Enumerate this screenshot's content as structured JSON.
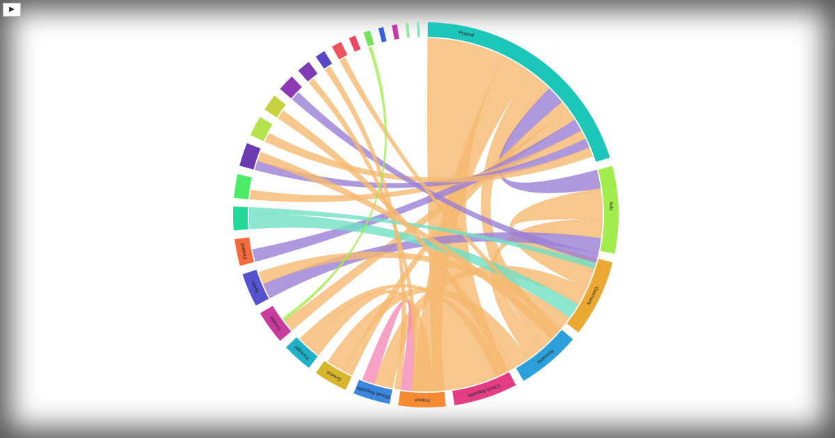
{
  "chart_data": {
    "type": "chord",
    "categories": [
      "Poland",
      "Italy",
      "Germany",
      "Romania",
      "Czech Republic",
      "France",
      "Slovak Republic",
      "Greece",
      "Portugal",
      "Croatia",
      "Spain",
      "Finland",
      null,
      null,
      null,
      null,
      null,
      null,
      null,
      null,
      null,
      null,
      null,
      null,
      null,
      null,
      null
    ],
    "values": [
      71,
      26,
      23,
      19,
      19,
      14,
      11,
      10,
      9,
      10,
      10,
      8,
      7,
      7,
      7,
      6,
      5,
      5,
      4,
      3,
      3,
      2,
      2,
      1.5,
      1.5,
      0.8,
      0.6
    ],
    "colors": [
      "#1cc7b9",
      "#a3ec4e",
      "#eba833",
      "#2d9fdb",
      "#e43d83",
      "#f58a32",
      "#3c86db",
      "#d7b52d",
      "#22b0c7",
      "#c83c9e",
      "#5653cf",
      "#f56b3d",
      "#22d99a",
      "#4cec67",
      "#6c3ab0",
      "#b4e34f",
      "#c5d13f",
      "#8e39b3",
      "#7e3bb5",
      "#5946c4",
      "#f0535f",
      "#ec4663",
      "#77e35c",
      "#3a5fd6",
      "#c43ca6",
      "#8ee8a0",
      "#77e3b5"
    ],
    "flows": [
      {
        "source": 0,
        "target": 4,
        "value": 25,
        "color": "#f5b971"
      },
      {
        "source": 0,
        "target": 5,
        "value": 10,
        "color": "#f5b971"
      },
      {
        "source": 0,
        "target": 3,
        "value": 8,
        "color": "#f5b971"
      },
      {
        "source": 0,
        "target": 1,
        "value": 6,
        "color": "#9b7fd6"
      },
      {
        "source": 7,
        "target": 0,
        "value": 3,
        "color": "#f5b971"
      },
      {
        "source": 9,
        "target": 0,
        "value": 4,
        "color": "#f5b971"
      },
      {
        "source": 11,
        "target": 0,
        "value": 4,
        "color": "#9b7fd6"
      },
      {
        "source": 13,
        "target": 0,
        "value": 3,
        "color": "#f5b971"
      },
      {
        "source": 1,
        "target": 2,
        "value": 10,
        "color": "#f5b971"
      },
      {
        "source": 1,
        "target": 3,
        "value": 6,
        "color": "#f5b971"
      },
      {
        "source": 1,
        "target": 10,
        "value": 5,
        "color": "#9b7fd6"
      },
      {
        "source": 2,
        "target": 6,
        "value": 6,
        "color": "#f5b971"
      },
      {
        "source": 2,
        "target": 12,
        "value": 5,
        "color": "#6fe0c4"
      },
      {
        "source": 3,
        "target": 7,
        "value": 6,
        "color": "#f5b971"
      },
      {
        "source": 4,
        "target": 8,
        "value": 5,
        "color": "#f5b971"
      },
      {
        "source": 5,
        "target": 6,
        "value": 4,
        "color": "#f48ab8"
      },
      {
        "source": 10,
        "target": 2,
        "value": 4,
        "color": "#f5b971"
      },
      {
        "source": 14,
        "target": 0,
        "value": 3,
        "color": "#9b7fd6"
      },
      {
        "source": 15,
        "target": 0,
        "value": 3,
        "color": "#f5b971"
      },
      {
        "source": 17,
        "target": 1,
        "value": 3,
        "color": "#9b7fd6"
      },
      {
        "source": 16,
        "target": 3,
        "value": 3,
        "color": "#f5b971"
      },
      {
        "source": 18,
        "target": 4,
        "value": 2,
        "color": "#f5b971"
      },
      {
        "source": 19,
        "target": 5,
        "value": 2,
        "color": "#f5b971"
      },
      {
        "source": 20,
        "target": 2,
        "value": 2,
        "color": "#f5b971"
      },
      {
        "source": 12,
        "target": 1,
        "value": 2,
        "color": "#6fe0c4"
      },
      {
        "source": 8,
        "target": 3,
        "value": 3,
        "color": "#f5b971"
      },
      {
        "source": 22,
        "target": 9,
        "value": 1,
        "color": "#a3ec4e"
      },
      {
        "source": 14,
        "target": 2,
        "value": 3,
        "color": "#f5b971"
      }
    ]
  }
}
